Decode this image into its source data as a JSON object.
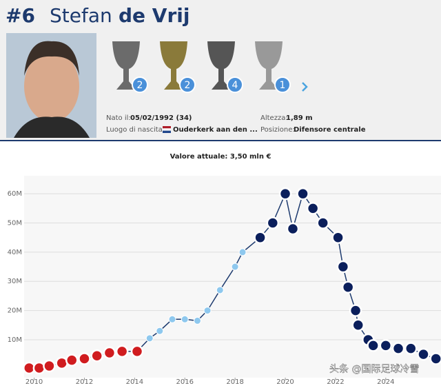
{
  "header": {
    "number": "#6",
    "first_name": "Stefan",
    "last_name": "de Vrij"
  },
  "trophies": [
    {
      "count": "2"
    },
    {
      "count": "2"
    },
    {
      "count": "4"
    },
    {
      "count": "1"
    }
  ],
  "info": {
    "birth_label": "Nato il:",
    "birth_value": "05/02/1992 (34)",
    "place_label": "Luogo di nascita:",
    "place_value": "Ouderkerk aan den ...",
    "height_label": "Altezza:",
    "height_value": "1,89 m",
    "position_label": "Posizione:",
    "position_value": "Difensore centrale"
  },
  "chart_data": {
    "type": "line",
    "title": "Valore attuale: 3,50 mln €",
    "x": [
      2009.8,
      2010.2,
      2010.6,
      2011.1,
      2011.5,
      2012.0,
      2012.5,
      2013.0,
      2013.5,
      2014.1,
      2014.6,
      2015.0,
      2015.5,
      2016.0,
      2016.5,
      2016.9,
      2017.4,
      2018.0,
      2018.3,
      2019.0,
      2019.5,
      2020.0,
      2020.3,
      2020.7,
      2021.1,
      2021.5,
      2022.1,
      2022.3,
      2022.5,
      2022.8,
      2022.9,
      2023.3,
      2023.5,
      2024.0,
      2024.5,
      2025.0,
      2025.5,
      2026.0
    ],
    "series": [
      {
        "color": "#1d3a6e",
        "values": [
          0.3,
          0.3,
          1,
          2,
          3,
          3.5,
          4.5,
          5.5,
          6,
          6,
          10.5,
          13,
          17,
          17,
          16.5,
          20,
          27,
          35,
          40,
          45,
          50,
          60,
          48,
          60,
          55,
          50,
          45,
          35,
          28,
          20,
          15,
          10,
          8,
          8,
          7,
          7,
          5,
          3.5
        ]
      }
    ],
    "marker_colors": [
      "#d01c1f",
      "#d01c1f",
      "#d01c1f",
      "#d01c1f",
      "#d01c1f",
      "#d01c1f",
      "#d01c1f",
      "#d01c1f",
      "#d01c1f",
      "#d01c1f",
      "#8ec8ee",
      "#8ec8ee",
      "#8ec8ee",
      "#8ec8ee",
      "#8ec8ee",
      "#8ec8ee",
      "#8ec8ee",
      "#8ec8ee",
      "#8ec8ee",
      "#0b1f5c",
      "#0b1f5c",
      "#0b1f5c",
      "#0b1f5c",
      "#0b1f5c",
      "#0b1f5c",
      "#0b1f5c",
      "#0b1f5c",
      "#0b1f5c",
      "#0b1f5c",
      "#0b1f5c",
      "#0b1f5c",
      "#0b1f5c",
      "#0b1f5c",
      "#0b1f5c",
      "#0b1f5c",
      "#0b1f5c",
      "#0b1f5c",
      "#0b1f5c"
    ],
    "xlim": [
      2009.6,
      2026.2
    ],
    "xticks": [
      2010,
      2012,
      2014,
      2016,
      2018,
      2020,
      2022,
      2024
    ],
    "ylim": [
      -3,
      65
    ],
    "yticks": [
      {
        "value": 10,
        "label": "10M"
      },
      {
        "value": 20,
        "label": "20M"
      },
      {
        "value": 30,
        "label": "30M"
      },
      {
        "value": 40,
        "label": "40M"
      },
      {
        "value": 50,
        "label": "50M"
      },
      {
        "value": 60,
        "label": "60M"
      }
    ],
    "grid": true
  },
  "watermark": "头条 @国际足球冷雪"
}
